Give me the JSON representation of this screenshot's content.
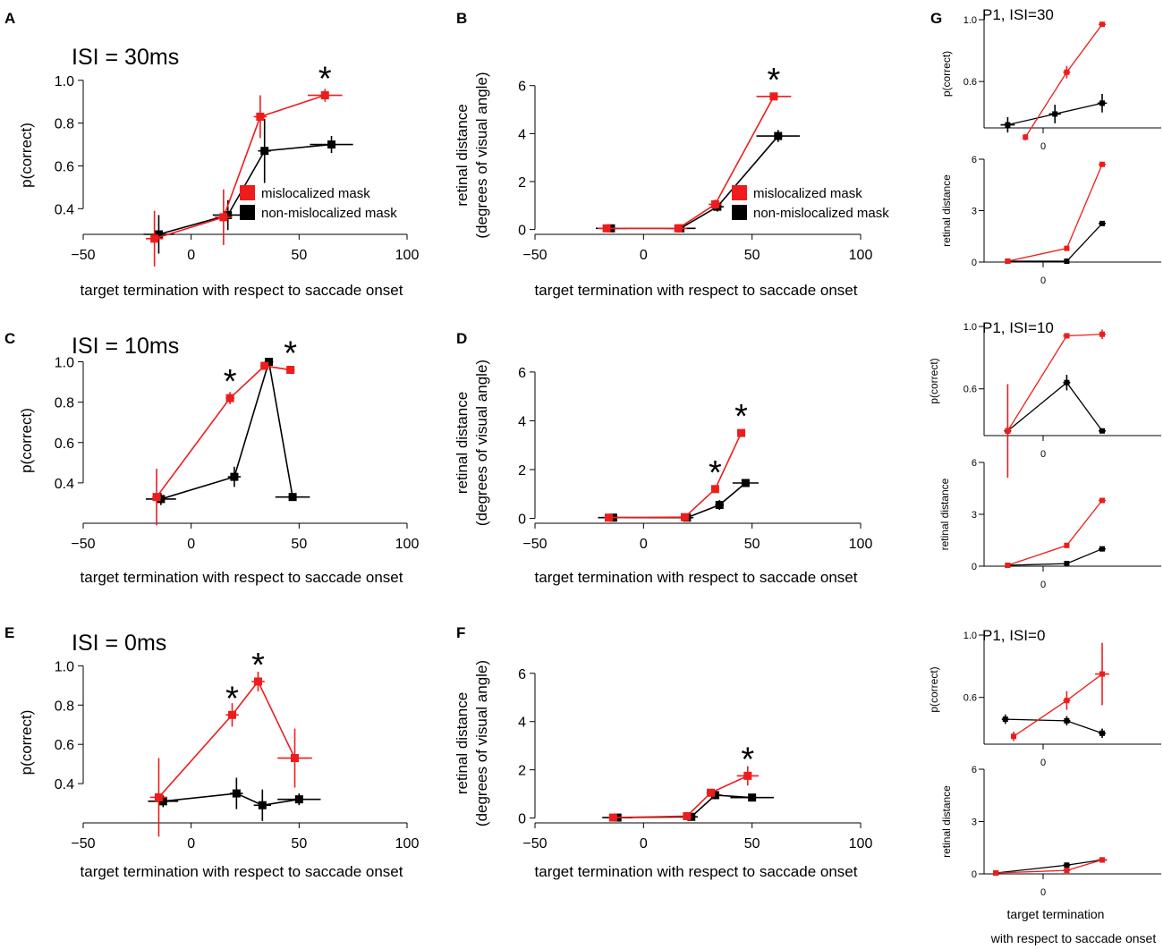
{
  "colors": {
    "mislocalized": "#ee1c1c",
    "non_mislocalized": "#000000",
    "axis": "#000000"
  },
  "chart_data": [
    {
      "id": "A",
      "panel_letter": "A",
      "type": "line",
      "title": "ISI = 30ms",
      "xlabel": "target termination with respect to saccade onset",
      "ylabel": "p(correct)",
      "xlim": [
        -50,
        100
      ],
      "ylim": [
        0.28,
        1.02
      ],
      "xticks": [
        -50,
        0,
        50,
        100
      ],
      "xtick_labels": [
        "−50",
        "0",
        "50",
        "100"
      ],
      "yticks": [
        0.4,
        0.6,
        0.8,
        1.0
      ],
      "ytick_labels": [
        "0.4",
        "0.6",
        "0.8",
        "1.0"
      ],
      "legend": [
        "mislocalized mask",
        "non-mislocalized mask"
      ],
      "series": [
        {
          "name": "mislocalized mask",
          "color": "#ee1c1c",
          "x": [
            -17,
            15,
            32,
            62
          ],
          "y": [
            0.26,
            0.36,
            0.83,
            0.93
          ],
          "xerr": [
            4,
            4,
            3,
            8
          ],
          "yerr": [
            0.13,
            0.13,
            0.1,
            0.03
          ]
        },
        {
          "name": "non-mislocalized mask",
          "color": "#000000",
          "x": [
            -15,
            17,
            34,
            65
          ],
          "y": [
            0.28,
            0.37,
            0.67,
            0.7
          ],
          "xerr": [
            7,
            7,
            3,
            10
          ],
          "yerr": [
            0.09,
            0.07,
            0.15,
            0.04
          ]
        }
      ],
      "stars": [
        {
          "x": 62,
          "y": 0.93,
          "label": "*"
        }
      ]
    },
    {
      "id": "B",
      "panel_letter": "B",
      "type": "line",
      "title": "",
      "xlabel": "target termination with respect to saccade onset",
      "ylabel": "retinal distance (degrees of visual angle)",
      "ylabel_lines": [
        "retinal distance",
        "(degrees of visual angle)"
      ],
      "xlim": [
        -50,
        100
      ],
      "ylim": [
        -0.2,
        6.4
      ],
      "xticks": [
        -50,
        0,
        50,
        100
      ],
      "xtick_labels": [
        "−50",
        "0",
        "50",
        "100"
      ],
      "yticks": [
        0,
        2,
        4,
        6
      ],
      "ytick_labels": [
        "0",
        "2",
        "4",
        "6"
      ],
      "legend": [
        "mislocalized mask",
        "non-mislocalized mask"
      ],
      "series": [
        {
          "name": "mislocalized mask",
          "color": "#ee1c1c",
          "x": [
            -17,
            16,
            33,
            60
          ],
          "y": [
            0.05,
            0.05,
            1.05,
            5.55
          ],
          "xerr": [
            4,
            4,
            3,
            8
          ],
          "yerr": [
            0.05,
            0.05,
            0.2,
            0.1
          ]
        },
        {
          "name": "non-mislocalized mask",
          "color": "#000000",
          "x": [
            -15,
            17,
            34,
            62
          ],
          "y": [
            0.05,
            0.05,
            0.95,
            3.9
          ],
          "xerr": [
            7,
            7,
            3,
            10
          ],
          "yerr": [
            0.05,
            0.05,
            0.2,
            0.25
          ]
        }
      ],
      "stars": [
        {
          "x": 60,
          "y": 5.55,
          "label": "*"
        }
      ]
    },
    {
      "id": "C",
      "panel_letter": "C",
      "type": "line",
      "title": "ISI = 10ms",
      "xlabel": "target termination with respect to saccade onset",
      "ylabel": "p(correct)",
      "xlim": [
        -50,
        100
      ],
      "ylim": [
        0.2,
        1.02
      ],
      "xticks": [
        -50,
        0,
        50,
        100
      ],
      "xtick_labels": [
        "−50",
        "0",
        "50",
        "100"
      ],
      "yticks": [
        0.4,
        0.6,
        0.8,
        1.0
      ],
      "ytick_labels": [
        "0.4",
        "0.6",
        "0.8",
        "1.0"
      ],
      "legend": [],
      "series": [
        {
          "name": "mislocalized mask",
          "color": "#ee1c1c",
          "x": [
            -16,
            18,
            34,
            46
          ],
          "y": [
            0.33,
            0.82,
            0.98,
            0.96
          ],
          "xerr": [
            2,
            2,
            2,
            2
          ],
          "yerr": [
            0.14,
            0.03,
            0.01,
            0.02
          ]
        },
        {
          "name": "non-mislocalized mask",
          "color": "#000000",
          "x": [
            -14,
            20,
            36,
            47
          ],
          "y": [
            0.32,
            0.43,
            1.0,
            0.33
          ],
          "xerr": [
            7,
            3,
            2,
            8
          ],
          "yerr": [
            0.03,
            0.05,
            0.01,
            0.01
          ]
        }
      ],
      "stars": [
        {
          "x": 18,
          "y": 0.82,
          "label": "*"
        },
        {
          "x": 46,
          "y": 0.96,
          "label": "*"
        }
      ]
    },
    {
      "id": "D",
      "panel_letter": "D",
      "type": "line",
      "title": "",
      "xlabel": "target termination with respect to saccade onset",
      "ylabel": "retinal distance (degrees of visual angle)",
      "ylabel_lines": [
        "retinal distance",
        "(degrees of visual angle)"
      ],
      "xlim": [
        -50,
        100
      ],
      "ylim": [
        -0.2,
        6.4
      ],
      "xticks": [
        -50,
        0,
        50,
        100
      ],
      "xtick_labels": [
        "−50",
        "0",
        "50",
        "100"
      ],
      "yticks": [
        0,
        2,
        4,
        6
      ],
      "ytick_labels": [
        "0",
        "2",
        "4",
        "6"
      ],
      "legend": [],
      "series": [
        {
          "name": "mislocalized mask",
          "color": "#ee1c1c",
          "x": [
            -16,
            19,
            33,
            45
          ],
          "y": [
            0.03,
            0.05,
            1.2,
            3.5
          ],
          "xerr": [
            2,
            2,
            1,
            1
          ],
          "yerr": [
            0.05,
            0.05,
            0.1,
            0.1
          ]
        },
        {
          "name": "non-mislocalized mask",
          "color": "#000000",
          "x": [
            -14,
            20,
            35,
            47
          ],
          "y": [
            0.03,
            0.03,
            0.55,
            1.45
          ],
          "xerr": [
            7,
            3,
            2,
            6
          ],
          "yerr": [
            0.05,
            0.05,
            0.2,
            0.05
          ]
        }
      ],
      "stars": [
        {
          "x": 33,
          "y": 1.2,
          "label": "*"
        },
        {
          "x": 45,
          "y": 3.5,
          "label": "*"
        }
      ]
    },
    {
      "id": "E",
      "panel_letter": "E",
      "type": "line",
      "title": "ISI = 0ms",
      "xlabel": "target termination with respect to saccade onset",
      "ylabel": "p(correct)",
      "xlim": [
        -50,
        100
      ],
      "ylim": [
        0.2,
        1.02
      ],
      "xticks": [
        -50,
        0,
        50,
        100
      ],
      "xtick_labels": [
        "−50",
        "0",
        "50",
        "100"
      ],
      "yticks": [
        0.4,
        0.6,
        0.8,
        1.0
      ],
      "ytick_labels": [
        "0.4",
        "0.6",
        "0.8",
        "1.0"
      ],
      "legend": [],
      "series": [
        {
          "name": "mislocalized mask",
          "color": "#ee1c1c",
          "x": [
            -15,
            19,
            31,
            48
          ],
          "y": [
            0.33,
            0.75,
            0.92,
            0.53
          ],
          "xerr": [
            4,
            3,
            3,
            8
          ],
          "yerr": [
            0.2,
            0.06,
            0.05,
            0.15
          ]
        },
        {
          "name": "non-mislocalized mask",
          "color": "#000000",
          "x": [
            -13,
            21,
            33,
            50
          ],
          "y": [
            0.31,
            0.35,
            0.29,
            0.32
          ],
          "xerr": [
            7,
            3,
            4,
            10
          ],
          "yerr": [
            0.03,
            0.08,
            0.08,
            0.03
          ]
        }
      ],
      "stars": [
        {
          "x": 19,
          "y": 0.75,
          "label": "*"
        },
        {
          "x": 31,
          "y": 0.92,
          "label": "*"
        }
      ]
    },
    {
      "id": "F",
      "panel_letter": "F",
      "type": "line",
      "title": "",
      "xlabel": "target termination with respect to saccade onset",
      "ylabel": "retinal distance (degrees of visual angle)",
      "ylabel_lines": [
        "retinal distance",
        "(degrees of visual angle)"
      ],
      "xlim": [
        -50,
        100
      ],
      "ylim": [
        -0.2,
        6.4
      ],
      "xticks": [
        -50,
        0,
        50,
        100
      ],
      "xtick_labels": [
        "−50",
        "0",
        "50",
        "100"
      ],
      "yticks": [
        0,
        2,
        4,
        6
      ],
      "ytick_labels": [
        "0",
        "2",
        "4",
        "6"
      ],
      "legend": [],
      "series": [
        {
          "name": "mislocalized mask",
          "color": "#ee1c1c",
          "x": [
            -14,
            20,
            31,
            48
          ],
          "y": [
            0.02,
            0.08,
            1.05,
            1.75
          ],
          "xerr": [
            2,
            2,
            2,
            5
          ],
          "yerr": [
            0.05,
            0.05,
            0.1,
            0.4
          ]
        },
        {
          "name": "non-mislocalized mask",
          "color": "#000000",
          "x": [
            -12,
            22,
            33,
            50
          ],
          "y": [
            0.02,
            0.05,
            0.95,
            0.85
          ],
          "xerr": [
            7,
            3,
            3,
            10
          ],
          "yerr": [
            0.05,
            0.05,
            0.1,
            0.1
          ]
        }
      ],
      "stars": [
        {
          "x": 48,
          "y": 1.75,
          "label": "*"
        }
      ]
    },
    {
      "id": "G1",
      "panel_letter": "G",
      "type": "line",
      "title": "P1, ISI=30",
      "xlabel": "",
      "ylabel": "p(correct)",
      "xlim": [
        -50,
        100
      ],
      "ylim": [
        0.3,
        1.0
      ],
      "xticks": [
        0
      ],
      "xtick_labels": [
        "0"
      ],
      "yticks": [
        0.6,
        1.0
      ],
      "ytick_labels": [
        "0.6",
        "1.0"
      ],
      "legend": [],
      "series": [
        {
          "name": "mislocalized mask",
          "color": "#ee1c1c",
          "x": [
            -15,
            20,
            50
          ],
          "y": [
            0.24,
            0.66,
            0.97
          ],
          "xerr": [
            2,
            3,
            3
          ],
          "yerr": [
            0.02,
            0.04,
            0.01
          ]
        },
        {
          "name": "non-mislocalized mask",
          "color": "#000000",
          "x": [
            -30,
            10,
            50
          ],
          "y": [
            0.32,
            0.39,
            0.46
          ],
          "xerr": [
            6,
            5,
            4
          ],
          "yerr": [
            0.05,
            0.06,
            0.06
          ]
        }
      ],
      "stars": []
    },
    {
      "id": "G2",
      "panel_letter": "",
      "type": "line",
      "title": "",
      "xlabel": "",
      "ylabel": "retinal distance",
      "xlim": [
        -50,
        100
      ],
      "ylim": [
        0,
        6
      ],
      "xticks": [
        0
      ],
      "xtick_labels": [
        "0"
      ],
      "yticks": [
        0,
        3,
        6
      ],
      "ytick_labels": [
        "0",
        "3",
        "6"
      ],
      "legend": [],
      "series": [
        {
          "name": "mislocalized mask",
          "color": "#ee1c1c",
          "x": [
            -30,
            20,
            50
          ],
          "y": [
            0.05,
            0.8,
            5.7
          ],
          "xerr": [
            2,
            2,
            3
          ],
          "yerr": [
            0.05,
            0.1,
            0.1
          ]
        },
        {
          "name": "non-mislocalized mask",
          "color": "#000000",
          "x": [
            -30,
            20,
            50
          ],
          "y": [
            0.05,
            0.05,
            2.25
          ],
          "xerr": [
            2,
            2,
            3
          ],
          "yerr": [
            0.05,
            0.05,
            0.1
          ]
        }
      ],
      "stars": []
    },
    {
      "id": "G3",
      "panel_letter": "",
      "type": "line",
      "title": "P1, ISI=10",
      "xlabel": "",
      "ylabel": "p(correct)",
      "xlim": [
        -50,
        100
      ],
      "ylim": [
        0.3,
        1.0
      ],
      "xticks": [
        0
      ],
      "xtick_labels": [
        "0"
      ],
      "yticks": [
        0.6,
        1.0
      ],
      "ytick_labels": [
        "0.6",
        "1.0"
      ],
      "legend": [],
      "series": [
        {
          "name": "mislocalized mask",
          "color": "#ee1c1c",
          "x": [
            -30,
            20,
            50
          ],
          "y": [
            0.33,
            0.94,
            0.95
          ],
          "xerr": [
            2,
            3,
            3
          ],
          "yerr": [
            0.3,
            0.01,
            0.03
          ]
        },
        {
          "name": "non-mislocalized mask",
          "color": "#000000",
          "x": [
            -30,
            20,
            50
          ],
          "y": [
            0.33,
            0.64,
            0.33
          ],
          "xerr": [
            3,
            3,
            3
          ],
          "yerr": [
            0.03,
            0.05,
            0.01
          ]
        }
      ],
      "stars": []
    },
    {
      "id": "G4",
      "panel_letter": "",
      "type": "line",
      "title": "",
      "xlabel": "",
      "ylabel": "retinal distance",
      "xlim": [
        -50,
        100
      ],
      "ylim": [
        0,
        6
      ],
      "xticks": [
        0
      ],
      "xtick_labels": [
        "0"
      ],
      "yticks": [
        0,
        3,
        6
      ],
      "ytick_labels": [
        "0",
        "3",
        "6"
      ],
      "legend": [],
      "series": [
        {
          "name": "mislocalized mask",
          "color": "#ee1c1c",
          "x": [
            -30,
            20,
            50
          ],
          "y": [
            0.05,
            1.2,
            3.8
          ],
          "xerr": [
            2,
            2,
            3
          ],
          "yerr": [
            0.05,
            0.1,
            0.1
          ]
        },
        {
          "name": "non-mislocalized mask",
          "color": "#000000",
          "x": [
            -30,
            20,
            50
          ],
          "y": [
            0.05,
            0.15,
            1.0
          ],
          "xerr": [
            2,
            2,
            3
          ],
          "yerr": [
            0.05,
            0.05,
            0.05
          ]
        }
      ],
      "stars": []
    },
    {
      "id": "G5",
      "panel_letter": "",
      "type": "line",
      "title": "P1, ISI=0",
      "xlabel": "",
      "ylabel": "p(correct)",
      "xlim": [
        -50,
        100
      ],
      "ylim": [
        0.3,
        1.0
      ],
      "xticks": [
        0
      ],
      "xtick_labels": [
        "0"
      ],
      "yticks": [
        0.6,
        1.0
      ],
      "ytick_labels": [
        "0.6",
        "1.0"
      ],
      "legend": [],
      "series": [
        {
          "name": "mislocalized mask",
          "color": "#ee1c1c",
          "x": [
            -25,
            20,
            50
          ],
          "y": [
            0.35,
            0.58,
            0.75
          ],
          "xerr": [
            2,
            3,
            6
          ],
          "yerr": [
            0.03,
            0.06,
            0.2
          ]
        },
        {
          "name": "non-mislocalized mask",
          "color": "#000000",
          "x": [
            -32,
            20,
            50
          ],
          "y": [
            0.46,
            0.45,
            0.37
          ],
          "xerr": [
            3,
            3,
            3
          ],
          "yerr": [
            0.03,
            0.03,
            0.03
          ]
        }
      ],
      "stars": []
    },
    {
      "id": "G6",
      "panel_letter": "",
      "type": "line",
      "title": "",
      "xlabel": "target termination\nwith respect to saccade onset",
      "ylabel": "retinal distance",
      "xlabel_lines": [
        "target termination",
        "with respect to saccade onset"
      ],
      "xlim": [
        -50,
        100
      ],
      "ylim": [
        0,
        6
      ],
      "xticks": [
        0
      ],
      "xtick_labels": [
        "0"
      ],
      "yticks": [
        0,
        3,
        6
      ],
      "ytick_labels": [
        "0",
        "3",
        "6"
      ],
      "legend": [],
      "series": [
        {
          "name": "mislocalized mask",
          "color": "#ee1c1c",
          "x": [
            -40,
            20,
            50
          ],
          "y": [
            0.05,
            0.2,
            0.8
          ],
          "xerr": [
            2,
            3,
            4
          ],
          "yerr": [
            0.05,
            0.05,
            0.05
          ]
        },
        {
          "name": "non-mislocalized mask",
          "color": "#000000",
          "x": [
            -40,
            20,
            50
          ],
          "y": [
            0.05,
            0.5,
            0.8
          ],
          "xerr": [
            2,
            3,
            4
          ],
          "yerr": [
            0.05,
            0.05,
            0.05
          ]
        }
      ],
      "stars": []
    }
  ]
}
